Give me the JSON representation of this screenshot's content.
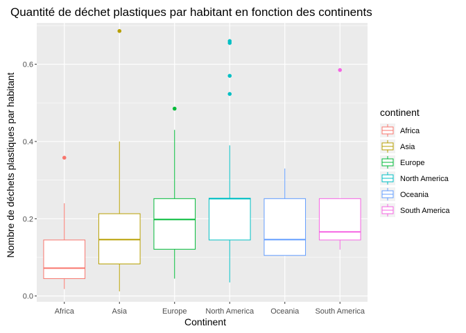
{
  "chart_data": {
    "type": "boxplot",
    "title": "Quantité de déchet plastiques par habitant en fonction des continents",
    "xlabel": "Continent",
    "ylabel": "Nombre de déchets plastiques par habitant",
    "ylim": [
      -0.015,
      0.707
    ],
    "yticks": [
      0.0,
      0.2,
      0.4,
      0.6
    ],
    "ytick_labels": [
      "0.0",
      "0.2",
      "0.4",
      "0.6"
    ],
    "grid": true,
    "background": "#ebebeb",
    "legend": {
      "title": "continent",
      "position": "right"
    },
    "categories": [
      "Africa",
      "Asia",
      "Europe",
      "North America",
      "Oceania",
      "South America"
    ],
    "series": [
      {
        "name": "Africa",
        "color": "#f8766d",
        "min": 0.018,
        "q1": 0.045,
        "median": 0.072,
        "q3": 0.145,
        "max": 0.24,
        "outliers": [
          0.358
        ]
      },
      {
        "name": "Asia",
        "color": "#b79f00",
        "min": 0.012,
        "q1": 0.083,
        "median": 0.146,
        "q3": 0.213,
        "max": 0.4,
        "outliers": [
          0.686
        ]
      },
      {
        "name": "Europe",
        "color": "#00ba38",
        "min": 0.045,
        "q1": 0.121,
        "median": 0.198,
        "q3": 0.252,
        "max": 0.43,
        "outliers": [
          0.485
        ]
      },
      {
        "name": "North America",
        "color": "#00bfc4",
        "min": 0.035,
        "q1": 0.145,
        "median": 0.252,
        "q3": 0.253,
        "max": 0.39,
        "outliers": [
          0.523,
          0.57,
          0.655,
          0.66
        ]
      },
      {
        "name": "Oceania",
        "color": "#619cff",
        "min": 0.105,
        "q1": 0.105,
        "median": 0.146,
        "q3": 0.252,
        "max": 0.33,
        "outliers": []
      },
      {
        "name": "South America",
        "color": "#f564e3",
        "min": 0.12,
        "q1": 0.145,
        "median": 0.166,
        "q3": 0.252,
        "max": 0.252,
        "outliers": [
          0.585
        ]
      }
    ]
  }
}
